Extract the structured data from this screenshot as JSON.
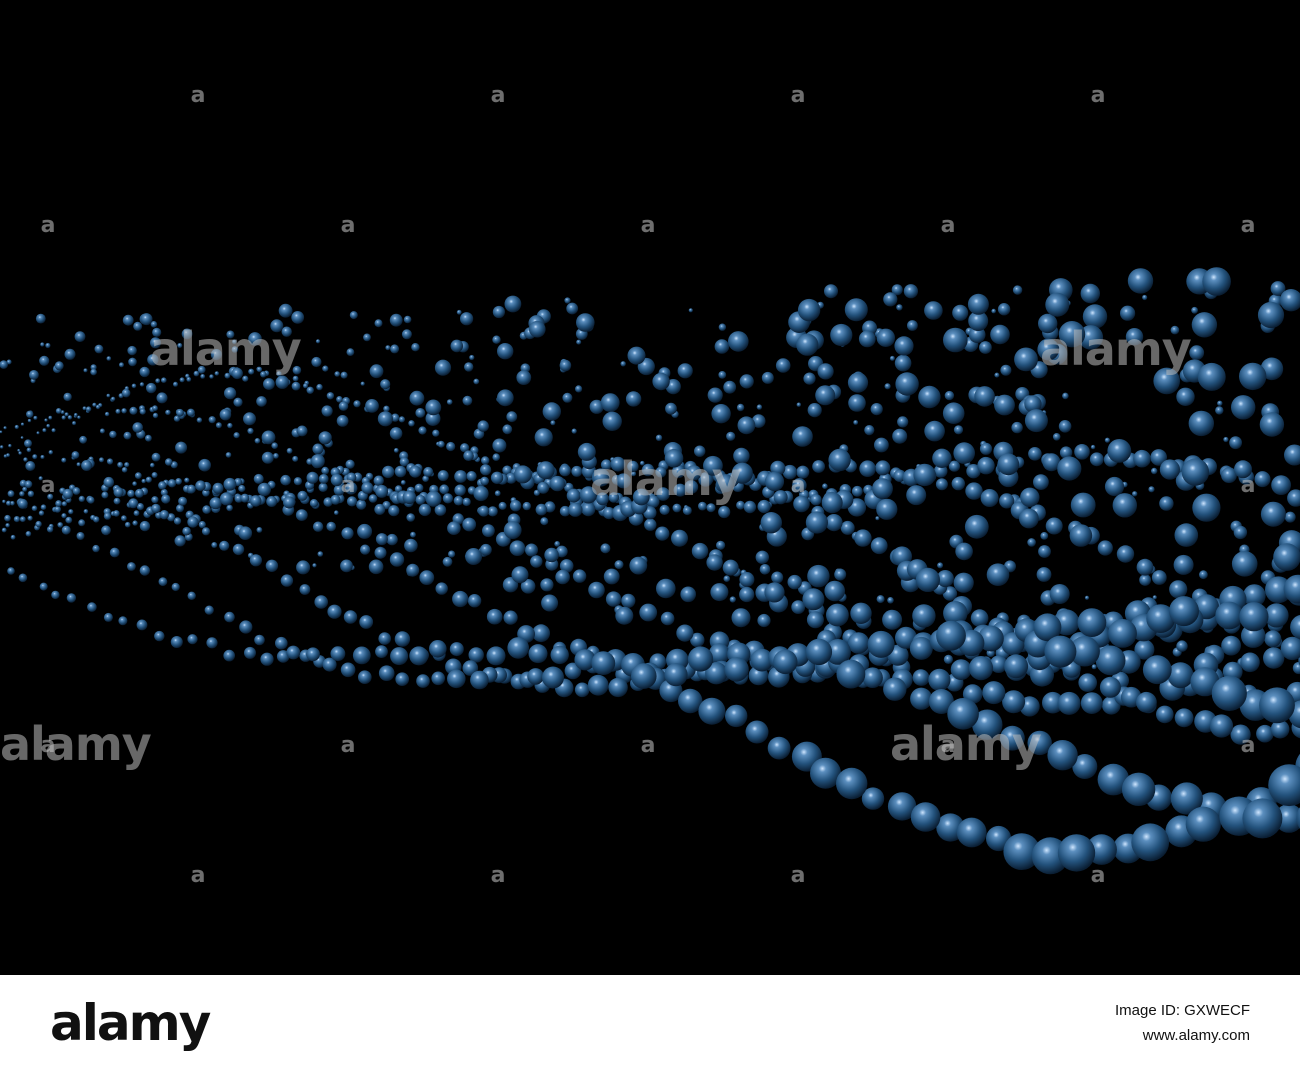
{
  "watermark": {
    "logo": "alamy",
    "mark": "a"
  },
  "footer": {
    "logo": "alamy",
    "image_id": "Image ID: GXWECF",
    "url": "www.alamy.com"
  }
}
